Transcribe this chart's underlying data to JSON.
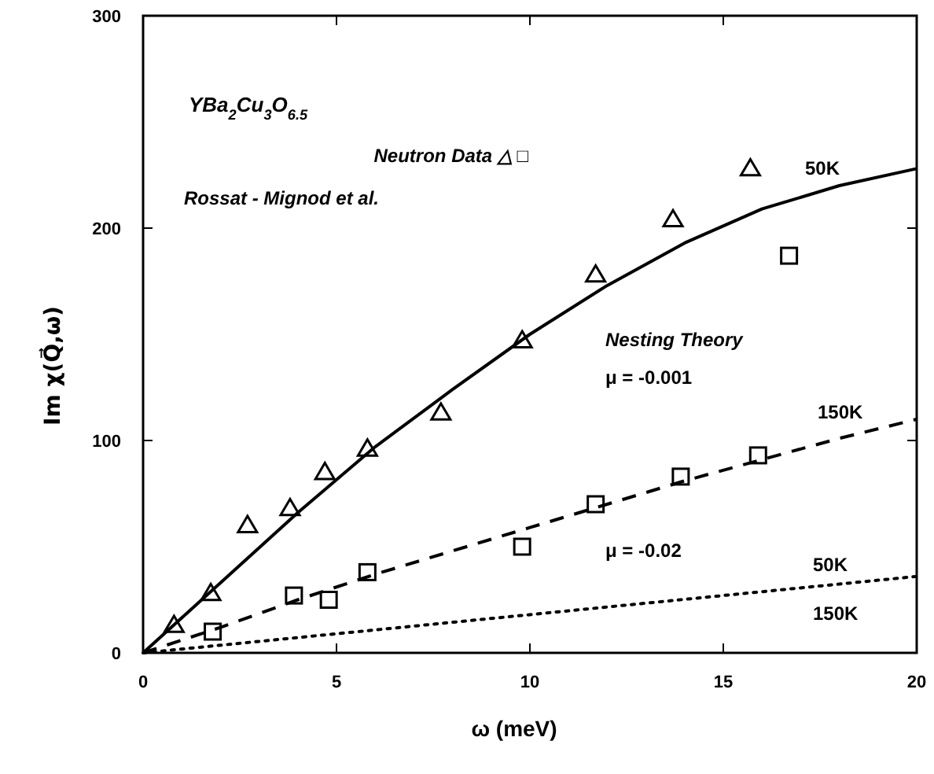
{
  "chart_data": {
    "type": "scatter",
    "xlabel": "ω (meV)",
    "ylabel": "Im χ(Q⃗,ω)",
    "xlim": [
      0,
      20
    ],
    "ylim": [
      0,
      300
    ],
    "xticks": [
      0,
      5,
      10,
      15,
      20
    ],
    "yticks": [
      0,
      100,
      200,
      300
    ],
    "grid": false,
    "series": [
      {
        "marker": "triangle",
        "color": "#000000",
        "x": [
          0.8,
          1.75,
          2.7,
          3.8,
          4.7,
          5.8,
          7.7,
          9.8,
          11.7,
          13.7,
          15.7
        ],
        "values": [
          13,
          28,
          60,
          68,
          85,
          96,
          113,
          147,
          178,
          204,
          228
        ]
      },
      {
        "marker": "square",
        "color": "#000000",
        "x": [
          1.8,
          3.9,
          4.8,
          5.8,
          9.8,
          11.7,
          13.9,
          15.9,
          16.7
        ],
        "values": [
          10,
          27,
          25,
          38,
          50,
          70,
          83,
          93,
          187
        ]
      },
      {
        "type": "line",
        "line_style": "solid",
        "color": "#000000",
        "x": [
          0,
          2,
          4,
          6,
          8,
          10,
          12,
          14,
          16,
          18,
          20
        ],
        "values": [
          0,
          33,
          66,
          97,
          124,
          150,
          173,
          193,
          209,
          220,
          228
        ]
      },
      {
        "type": "line",
        "line_style": "dashed",
        "color": "#000000",
        "x": [
          0,
          2,
          4,
          6,
          8,
          10,
          12,
          14,
          16,
          18,
          20
        ],
        "values": [
          0,
          12,
          25,
          37,
          48,
          59,
          70,
          81,
          91,
          101,
          110
        ]
      },
      {
        "type": "line",
        "line_style": "dotted",
        "color": "#000000",
        "x": [
          0,
          5,
          10,
          15,
          20
        ],
        "values": [
          0,
          9,
          18,
          27,
          36
        ]
      }
    ],
    "annotations": [
      "YBa$_{2}$Cu$_{3}$O$_{6.5}$",
      "Neutron Data  △  □",
      "Rossat - Mignod et al.",
      "Nesting Theory",
      "μ = -0.001",
      "μ = -0.02",
      "50K",
      "150K",
      "50K",
      "150K"
    ]
  }
}
